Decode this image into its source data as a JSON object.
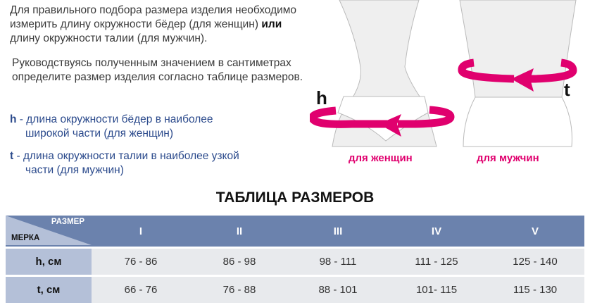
{
  "intro": {
    "line1": "Для правильного подбора размера изделия необходимо измерить длину окружности бёдер (для женщин)",
    "or": "или",
    "line2": "длину окружности талии (для мужчин)."
  },
  "guide": "Руководствуясь полученным значением в сантиметрах определите размер изделия согласно таблице размеров.",
  "legend": [
    {
      "key": "h",
      "text": "- длина окружности бёдер в наиболее",
      "text2": "широкой части (для женщин)"
    },
    {
      "key": "t",
      "text": "- длина окружности талии в наиболее узкой",
      "text2": "части (для мужчин)"
    }
  ],
  "figures": {
    "women_label": "для женщин",
    "men_label": "для мужчин",
    "h": "h",
    "t": "t",
    "arrow_color": "#e0006e"
  },
  "table": {
    "title": "ТАБЛИЦА РАЗМЕРОВ",
    "corner_top": "РАЗМЕР",
    "corner_bottom": "МЕРКА",
    "sizes": [
      "I",
      "II",
      "III",
      "IV",
      "V"
    ],
    "rows": [
      {
        "label": "h, см",
        "values": [
          "76 - 86",
          "86 - 98",
          "98 - 111",
          "111 - 125",
          "125 - 140"
        ]
      },
      {
        "label": "t, см",
        "values": [
          "66 - 76",
          "76 - 88",
          "88 - 101",
          "101- 115",
          "115 - 130"
        ]
      }
    ]
  }
}
